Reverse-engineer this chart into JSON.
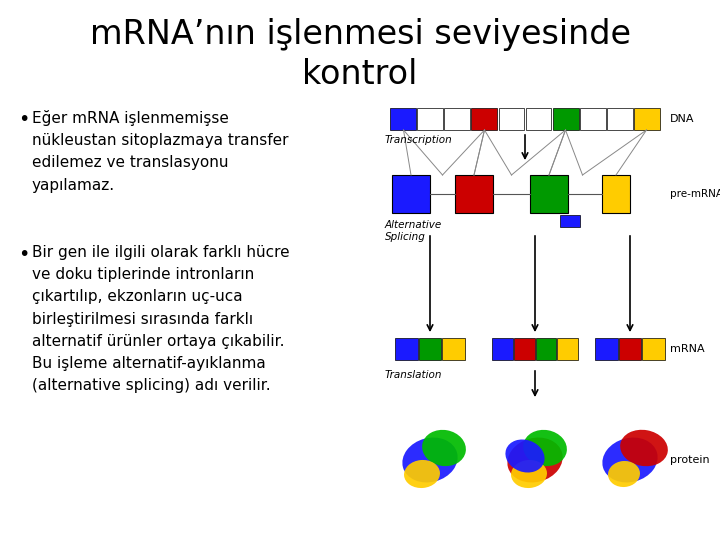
{
  "title_line1": "mRNA’nın işlenmesi seviyesinde",
  "title_line2": "kontrol",
  "background_color": "#ffffff",
  "title_fontsize": 24,
  "title_color": "#000000",
  "bullet1_lines": [
    "Eğer mRNA işlenmemişse",
    "nükleustan sitoplazmaya transfer",
    "edilemez ve translasyonu",
    "yapılamaz."
  ],
  "bullet2_lines": [
    "Bir gen ile ilgili olarak farklı hücre",
    "ve doku tiplerinde intronların",
    "çıkartılıp, ekzonların uç-uca",
    "birleştirilmesi sırasında farklı",
    "alternatif ürünler ortaya çıkabilir.",
    "Bu işleme alternatif-ayıklanma",
    "(alternative splicing) adı verilir."
  ],
  "bullet_fontsize": 11,
  "text_color": "#000000",
  "dna_segs": [
    "#1a1aff",
    "#ffffff",
    "#ffffff",
    "#cc0000",
    "#ffffff",
    "#ffffff",
    "#009900",
    "#ffffff",
    "#ffffff",
    "#ffcc00"
  ],
  "premrna_colors": [
    "#1a1aff",
    "#cc0000",
    "#009900",
    "#ffcc00"
  ],
  "mrna_segs_left": [
    "#1a1aff",
    "#009900",
    "#ffcc00"
  ],
  "mrna_segs_mid": [
    "#1a1aff",
    "#cc0000",
    "#009900",
    "#ffcc00"
  ],
  "mrna_segs_right": [
    "#1a1aff",
    "#cc0000",
    "#ffcc00"
  ]
}
